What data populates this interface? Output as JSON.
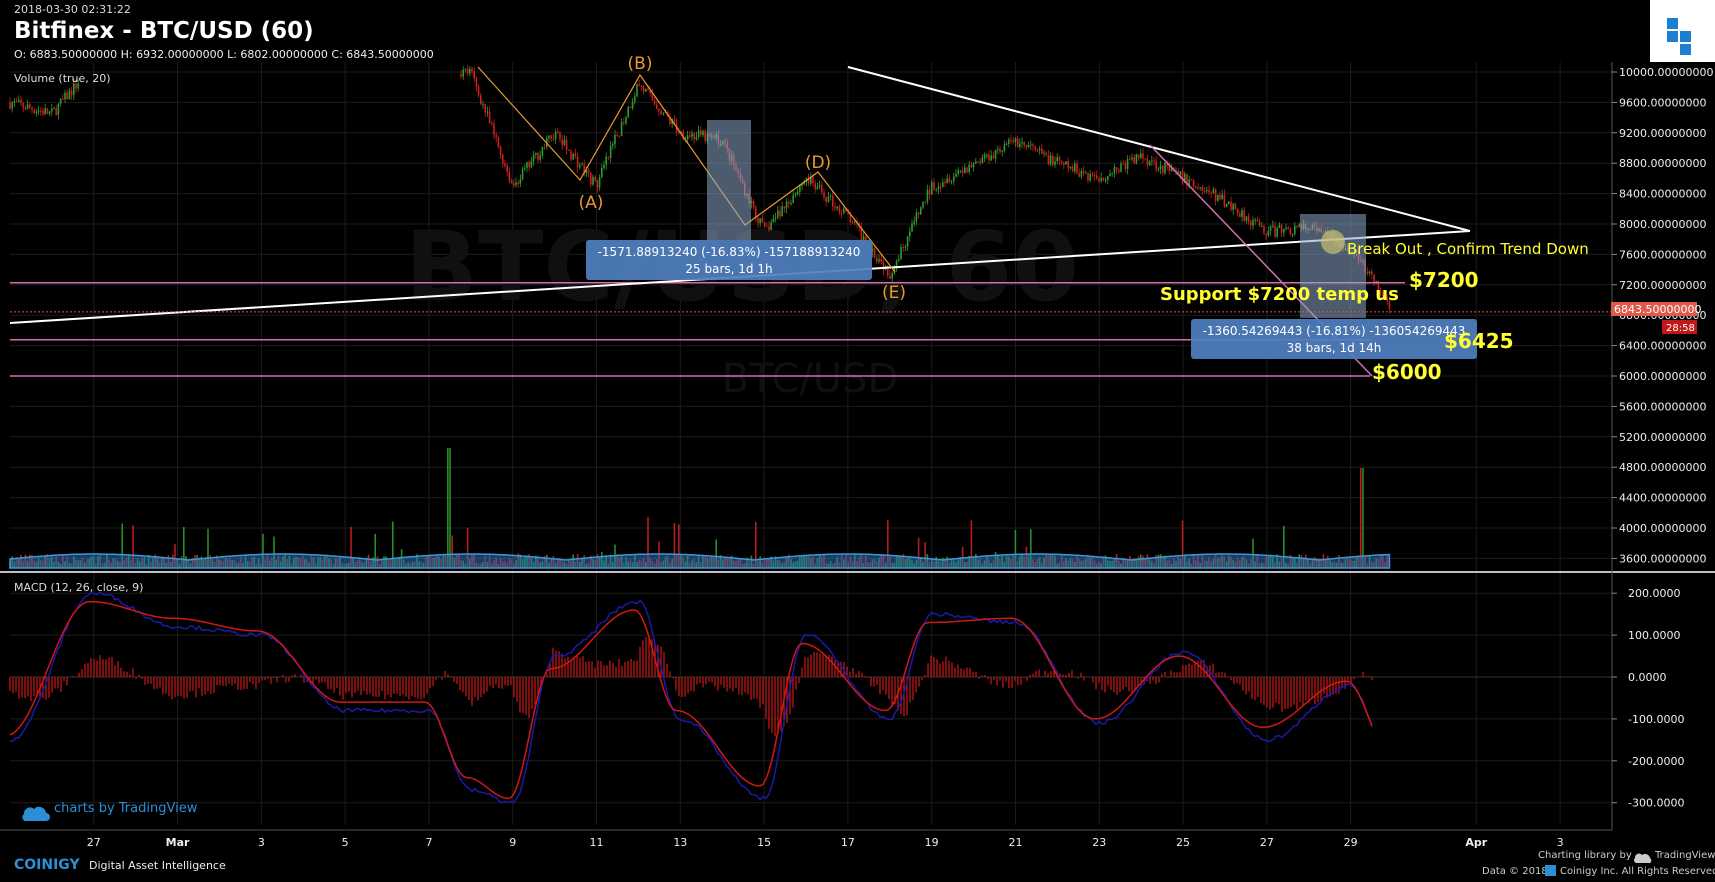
{
  "header": {
    "timestamp": "2018-03-30 02:31:22",
    "title": "Bitfinex - BTC/USD (60)",
    "ohlc": "O: 6883.50000000 H: 6932.00000000 L: 6802.00000000 C: 6843.50000000"
  },
  "watermark": {
    "big": "BTC/USD, 60",
    "small": "BTC/USD"
  },
  "indicators": {
    "volume": "Volume (true, 20)",
    "macd": "MACD (12, 26, close, 9)"
  },
  "price_axis": {
    "ticks": [
      10000,
      9600,
      9200,
      8800,
      8400,
      8000,
      7600,
      7200,
      6800,
      6400,
      6000,
      5600,
      5200,
      4800,
      4400,
      4000,
      3600
    ],
    "tick_labels": [
      "10000.00000000",
      "9600.00000000",
      "9200.00000000",
      "8800.00000000",
      "8400.00000000",
      "8000.00000000",
      "7600.00000000",
      "7200.00000000",
      "6800.00000000",
      "6400.00000000",
      "6000.00000000",
      "5600.00000000",
      "5200.00000000",
      "4800.00000000",
      "4400.00000000",
      "4000.00000000",
      "3600.00000000"
    ],
    "last_price_label": "6843.50000000",
    "countdown": "28:58"
  },
  "macd_axis": {
    "ticks": [
      200,
      100,
      0,
      -100,
      -200,
      -300
    ],
    "tick_labels": [
      "200.0000",
      "100.0000",
      "0.0000",
      "-100.0000",
      "-200.0000",
      "-300.0000"
    ]
  },
  "time_axis": {
    "labels": [
      "27",
      "Mar",
      "3",
      "5",
      "7",
      "9",
      "11",
      "13",
      "15",
      "17",
      "19",
      "21",
      "23",
      "25",
      "27",
      "29",
      "Apr",
      "3"
    ]
  },
  "annotations": {
    "wave_B": "(B)",
    "wave_A": "(A)",
    "wave_D": "(D)",
    "wave_E": "(E)",
    "measure1_line1": "-1571.88913240 (-16.83%) -157188913240",
    "measure1_line2": "25 bars, 1d 1h",
    "measure2_line1": "-1360.54269443 (-16.81%) -136054269443",
    "measure2_line2": "38 bars, 1d 14h",
    "breakout": "Break Out , Confirm Trend Down",
    "support": "Support $7200 temp  us",
    "level_7200": "$7200",
    "level_6425": "$6425",
    "level_6000": "$6000"
  },
  "footer": {
    "tradingview": "charts by TradingView",
    "coinigy": "COINIGY",
    "tagline": "Digital Asset Intelligence",
    "charting_by": "Charting library by",
    "tv_brand": "TradingView",
    "data_credit": "Data © 2018",
    "data_company": "Coinigy Inc. All Rights Reserved."
  },
  "colors": {
    "up": "#2e9b2e",
    "down": "#cc1f1f",
    "trendline": "#ffffff",
    "level_line": "#d070b0",
    "wave": "#e89a2c",
    "annotation_text": "#ffff33",
    "measure_box": "#4f7fc0",
    "volume_ma": "#2a6fb8",
    "macd": "#1a1aa8",
    "signal": "#d01818"
  },
  "chart_data": [
    {
      "type": "candlestick",
      "title": "Bitfinex - BTC/USD (60)",
      "x_range": [
        "2018-02-25",
        "2018-04-04"
      ],
      "ylim": [
        5000,
        10200
      ],
      "last_close": 6843.5,
      "open": 6883.5,
      "high": 6932.0,
      "low": 6802.0,
      "close": 6843.5,
      "key_points": [
        {
          "label": "(B)",
          "x": "2018-03-12",
          "y": 9850
        },
        {
          "label": "(A)",
          "x": "2018-03-11",
          "y": 8500
        },
        {
          "label": "(D)",
          "x": "2018-03-16",
          "y": 8600
        },
        {
          "label": "(E)",
          "x": "2018-03-18",
          "y": 7350
        }
      ],
      "path": [
        [
          "2018-02-25",
          9600
        ],
        [
          "2018-02-26",
          9450
        ],
        [
          "2018-02-27",
          10100
        ],
        [
          "2018-03-07",
          10050
        ],
        [
          "2018-03-08",
          10000
        ],
        [
          "2018-03-09",
          8500
        ],
        [
          "2018-03-10",
          9200
        ],
        [
          "2018-03-11",
          8500
        ],
        [
          "2018-03-12",
          9850
        ],
        [
          "2018-03-13",
          9200
        ],
        [
          "2018-03-14",
          9100
        ],
        [
          "2018-03-15",
          7900
        ],
        [
          "2018-03-16",
          8600
        ],
        [
          "2018-03-17",
          8100
        ],
        [
          "2018-03-18",
          7350
        ],
        [
          "2018-03-19",
          8500
        ],
        [
          "2018-03-20",
          8800
        ],
        [
          "2018-03-21",
          9100
        ],
        [
          "2018-03-22",
          8800
        ],
        [
          "2018-03-23",
          8600
        ],
        [
          "2018-03-24",
          8900
        ],
        [
          "2018-03-25",
          8600
        ],
        [
          "2018-03-26",
          8300
        ],
        [
          "2018-03-27",
          7900
        ],
        [
          "2018-03-28",
          7950
        ],
        [
          "2018-03-29",
          7700
        ],
        [
          "2018-03-30",
          6843.5
        ]
      ],
      "horizontal_levels": [
        7200,
        6425,
        6000
      ],
      "trendlines": [
        {
          "from": [
            "2018-03-05",
            10100
          ],
          "to": [
            "2018-04-01",
            7900
          ]
        },
        {
          "from": [
            "2018-02-25",
            6850
          ],
          "to": [
            "2018-04-01",
            7850
          ]
        }
      ],
      "measurements": [
        {
          "change": -1571.8891324,
          "pct": -16.83,
          "bars": 25,
          "span": "1d 1h"
        },
        {
          "change": -1360.54269443,
          "pct": -16.81,
          "bars": 38,
          "span": "1d 14h"
        }
      ]
    },
    {
      "type": "bar",
      "title": "Volume (true, 20)",
      "series": [
        {
          "name": "volume"
        },
        {
          "name": "volume MA 20"
        }
      ]
    },
    {
      "type": "line",
      "title": "MACD (12, 26, close, 9)",
      "ylim": [
        -320,
        230
      ],
      "series": [
        {
          "name": "macd",
          "points": [
            [
              "2018-02-25",
              -150
            ],
            [
              "2018-02-27",
              200
            ],
            [
              "2018-03-01",
              120
            ],
            [
              "2018-03-03",
              100
            ],
            [
              "2018-03-05",
              -80
            ],
            [
              "2018-03-07",
              -80
            ],
            [
              "2018-03-08",
              -270
            ],
            [
              "2018-03-09",
              -300
            ],
            [
              "2018-03-10",
              50
            ],
            [
              "2018-03-12",
              180
            ],
            [
              "2018-03-13",
              -100
            ],
            [
              "2018-03-15",
              -290
            ],
            [
              "2018-03-16",
              100
            ],
            [
              "2018-03-18",
              -100
            ],
            [
              "2018-03-19",
              150
            ],
            [
              "2018-03-21",
              130
            ],
            [
              "2018-03-23",
              -110
            ],
            [
              "2018-03-25",
              60
            ],
            [
              "2018-03-27",
              -150
            ],
            [
              "2018-03-29",
              -20
            ],
            [
              "2018-03-30",
              -220
            ]
          ]
        },
        {
          "name": "signal",
          "points": [
            [
              "2018-02-25",
              -140
            ],
            [
              "2018-02-27",
              180
            ],
            [
              "2018-03-01",
              140
            ],
            [
              "2018-03-03",
              110
            ],
            [
              "2018-03-05",
              -60
            ],
            [
              "2018-03-07",
              -60
            ],
            [
              "2018-03-08",
              -240
            ],
            [
              "2018-03-09",
              -290
            ],
            [
              "2018-03-10",
              20
            ],
            [
              "2018-03-12",
              160
            ],
            [
              "2018-03-13",
              -80
            ],
            [
              "2018-03-15",
              -260
            ],
            [
              "2018-03-16",
              80
            ],
            [
              "2018-03-18",
              -80
            ],
            [
              "2018-03-19",
              130
            ],
            [
              "2018-03-21",
              140
            ],
            [
              "2018-03-23",
              -100
            ],
            [
              "2018-03-25",
              50
            ],
            [
              "2018-03-27",
              -120
            ],
            [
              "2018-03-29",
              -10
            ],
            [
              "2018-03-30",
              -170
            ]
          ]
        }
      ]
    }
  ]
}
